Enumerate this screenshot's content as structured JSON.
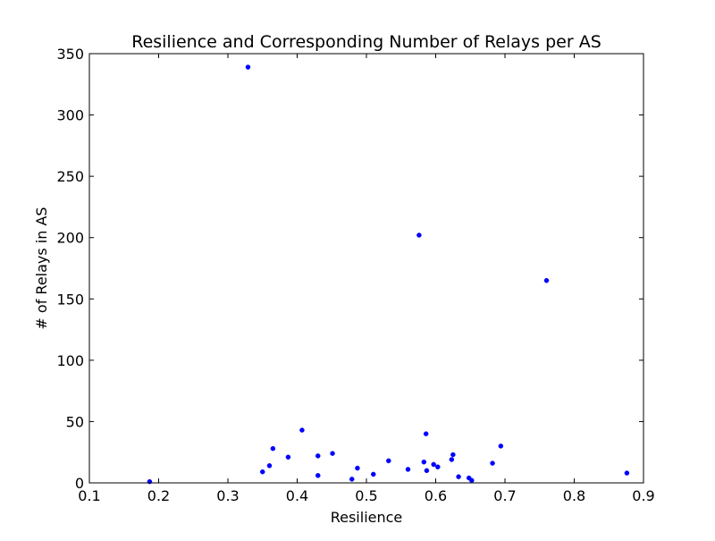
{
  "chart_data": {
    "type": "scatter",
    "title": "Resilience and Corresponding Number of Relays per AS",
    "xlabel": "Resilience",
    "ylabel": "# of Relays in AS",
    "xlim": [
      0.1,
      0.9
    ],
    "ylim": [
      0,
      350
    ],
    "xticks": [
      "0.1",
      "0.2",
      "0.3",
      "0.4",
      "0.5",
      "0.6",
      "0.7",
      "0.8",
      "0.9"
    ],
    "yticks": [
      "0",
      "50",
      "100",
      "150",
      "200",
      "250",
      "300",
      "350"
    ],
    "grid": false,
    "legend": "none",
    "marker_color": "#0000ff",
    "points": [
      {
        "x": 0.187,
        "y": 1
      },
      {
        "x": 0.329,
        "y": 339
      },
      {
        "x": 0.35,
        "y": 9
      },
      {
        "x": 0.36,
        "y": 14
      },
      {
        "x": 0.365,
        "y": 28
      },
      {
        "x": 0.387,
        "y": 21
      },
      {
        "x": 0.407,
        "y": 43
      },
      {
        "x": 0.43,
        "y": 6
      },
      {
        "x": 0.43,
        "y": 22
      },
      {
        "x": 0.451,
        "y": 24
      },
      {
        "x": 0.479,
        "y": 3
      },
      {
        "x": 0.487,
        "y": 12
      },
      {
        "x": 0.51,
        "y": 7
      },
      {
        "x": 0.532,
        "y": 18
      },
      {
        "x": 0.56,
        "y": 11
      },
      {
        "x": 0.576,
        "y": 202
      },
      {
        "x": 0.583,
        "y": 17
      },
      {
        "x": 0.586,
        "y": 40
      },
      {
        "x": 0.587,
        "y": 10
      },
      {
        "x": 0.597,
        "y": 15
      },
      {
        "x": 0.603,
        "y": 13
      },
      {
        "x": 0.623,
        "y": 19
      },
      {
        "x": 0.625,
        "y": 23
      },
      {
        "x": 0.633,
        "y": 5
      },
      {
        "x": 0.648,
        "y": 4
      },
      {
        "x": 0.652,
        "y": 2
      },
      {
        "x": 0.682,
        "y": 16
      },
      {
        "x": 0.694,
        "y": 30
      },
      {
        "x": 0.76,
        "y": 165
      },
      {
        "x": 0.876,
        "y": 8
      }
    ]
  }
}
